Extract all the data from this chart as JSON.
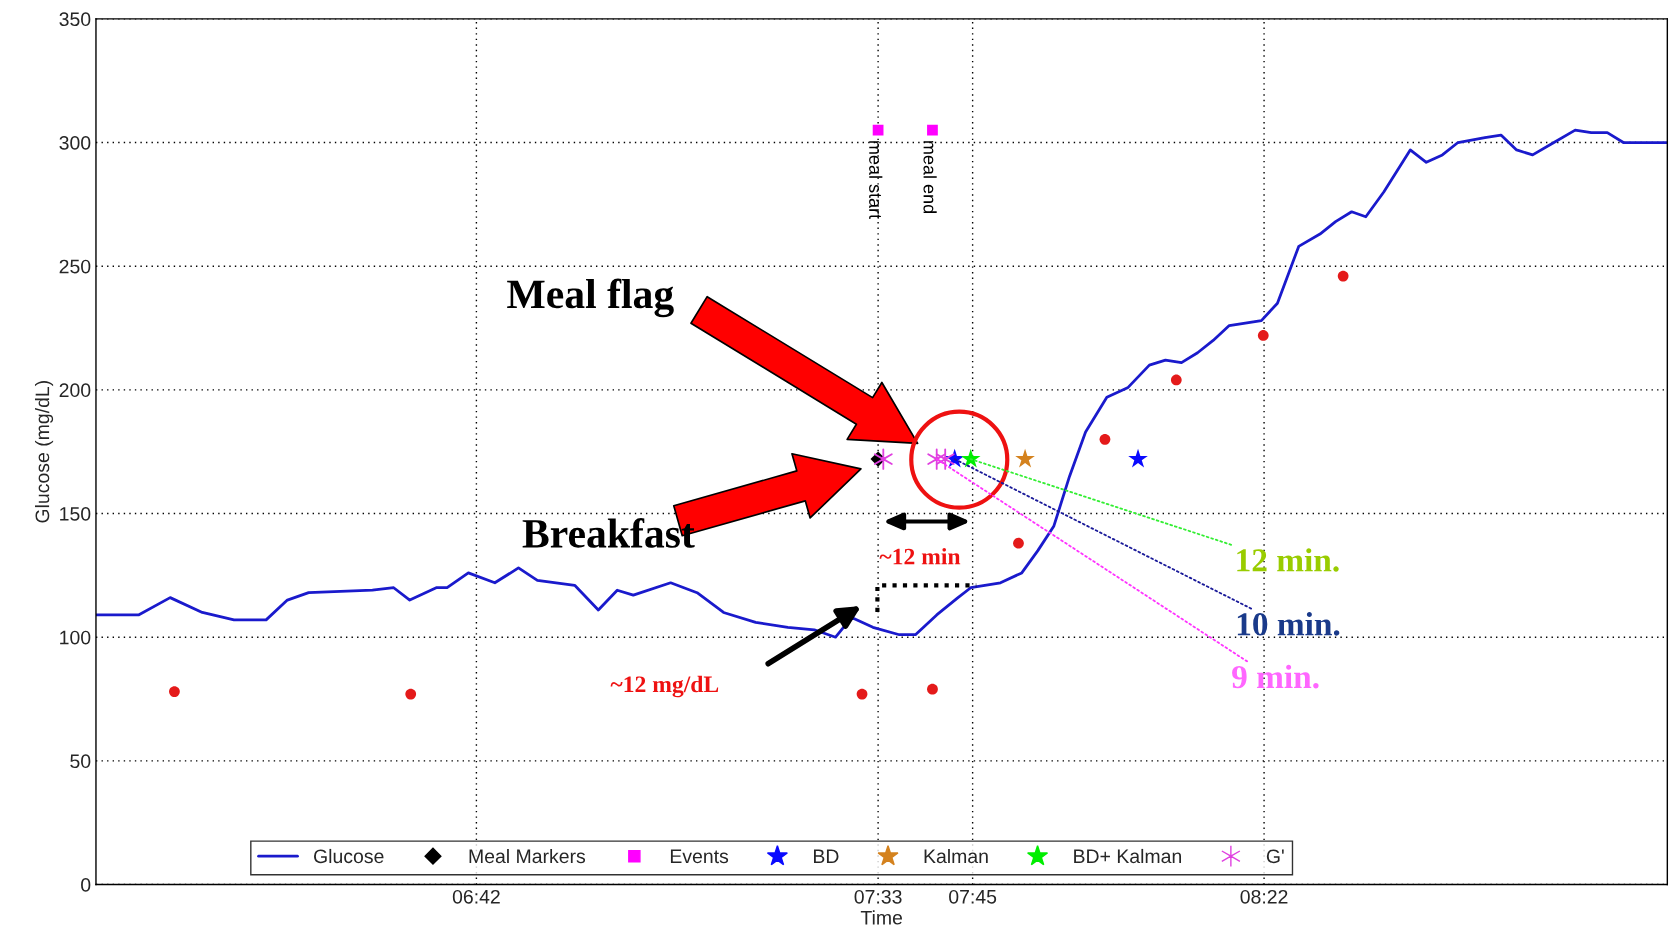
{
  "chart_data": {
    "type": "line",
    "xlabel": "Time",
    "ylabel": "Glucose (mg/dL)",
    "xlim": [
      5.895,
      9.22
    ],
    "xticks": [
      {
        "value": 6.7,
        "label": "06:42"
      },
      {
        "value": 7.55,
        "label": "07:33"
      },
      {
        "value": 7.75,
        "label": "07:45"
      },
      {
        "value": 8.3667,
        "label": "08:22"
      }
    ],
    "ylim": [
      0,
      350
    ],
    "yticks": [
      0,
      50,
      100,
      150,
      200,
      250,
      300,
      350
    ],
    "grid": true,
    "legend": "bottom",
    "series": [
      {
        "name": "Glucose",
        "color": "#1a1acc",
        "marker": "none",
        "x": [
          5.895,
          5.985,
          6.052,
          6.12,
          6.187,
          6.255,
          6.3,
          6.345,
          6.48,
          6.525,
          6.559,
          6.615,
          6.638,
          6.683,
          6.739,
          6.789,
          6.829,
          6.908,
          6.958,
          6.998,
          7.032,
          7.111,
          7.167,
          7.223,
          7.291,
          7.359,
          7.415,
          7.46,
          7.494,
          7.539,
          7.595,
          7.629,
          7.674,
          7.719,
          7.746,
          7.809,
          7.854,
          7.888,
          7.922,
          7.955,
          7.989,
          8.034,
          8.079,
          8.124,
          8.158,
          8.192,
          8.226,
          8.259,
          8.293,
          8.327,
          8.361,
          8.395,
          8.44,
          8.485,
          8.518,
          8.552,
          8.582,
          8.62,
          8.676,
          8.71,
          8.744,
          8.777,
          8.834,
          8.868,
          8.901,
          8.935,
          8.98,
          9.025,
          9.059,
          9.093,
          9.127,
          9.172,
          9.22
        ],
        "values": [
          109,
          109,
          116,
          110,
          107,
          107,
          115,
          118,
          119,
          120,
          115,
          120,
          120,
          126,
          122,
          128,
          123,
          121,
          111,
          119,
          117,
          122,
          118,
          110,
          106,
          104,
          103,
          100,
          108,
          104,
          101,
          101,
          109,
          116,
          120,
          122,
          126,
          135,
          145,
          165,
          183,
          197,
          201,
          210,
          212,
          211,
          215,
          220,
          226,
          227,
          228,
          235,
          258,
          263,
          268,
          272,
          270,
          280,
          297,
          292,
          295,
          300,
          302,
          303,
          297,
          295,
          300,
          305,
          304,
          304,
          300,
          300,
          300
        ]
      },
      {
        "type": "scatter",
        "color": "#e41a1a",
        "marker": "circle",
        "x": [
          6.061,
          6.561,
          7.516,
          7.665,
          7.847,
          8.03,
          8.181,
          8.365,
          8.534
        ],
        "values": [
          78,
          77,
          77,
          79,
          138,
          180,
          204,
          222,
          246
        ]
      },
      {
        "name": "Meal Markers",
        "type": "scatter",
        "color": "#000000",
        "marker": "diamond",
        "x": [
          7.55
        ],
        "values": [
          172
        ]
      },
      {
        "name": "Events",
        "type": "scatter",
        "color": "#ff00ff",
        "marker": "square",
        "x": [
          7.55,
          7.665
        ],
        "values": [
          305,
          305
        ]
      },
      {
        "name": "BD",
        "type": "scatter",
        "color": "#0a0aff",
        "marker": "star",
        "x": [
          7.712,
          8.1
        ],
        "values": [
          172,
          172
        ]
      },
      {
        "name": "Kalman",
        "type": "scatter",
        "color": "#d4821e",
        "marker": "star",
        "x": [
          7.861
        ],
        "values": [
          172
        ]
      },
      {
        "name": "BD+ Kalman",
        "type": "scatter",
        "color": "#00ee00",
        "marker": "star",
        "x": [
          7.746
        ],
        "values": [
          172
        ]
      },
      {
        "name": "G'",
        "type": "scatter",
        "color": "#e040e0",
        "marker": "cross",
        "x": [
          7.561,
          7.674,
          7.692
        ],
        "values": [
          172,
          172,
          172
        ]
      }
    ],
    "annotations": [
      {
        "text": "meal start",
        "x": 7.55,
        "y": 305
      },
      {
        "text": "meal end",
        "x": 7.665,
        "y": 305
      },
      "Meal flag",
      "Breakfast",
      "~12 min",
      "~12 mg/dL",
      {
        "text": "12 min.",
        "x": 7.746,
        "y": 172
      },
      {
        "text": "10 min.",
        "x": 7.712,
        "y": 172
      },
      {
        "text": "9 min.",
        "x": 7.674,
        "y": 172
      }
    ]
  }
}
